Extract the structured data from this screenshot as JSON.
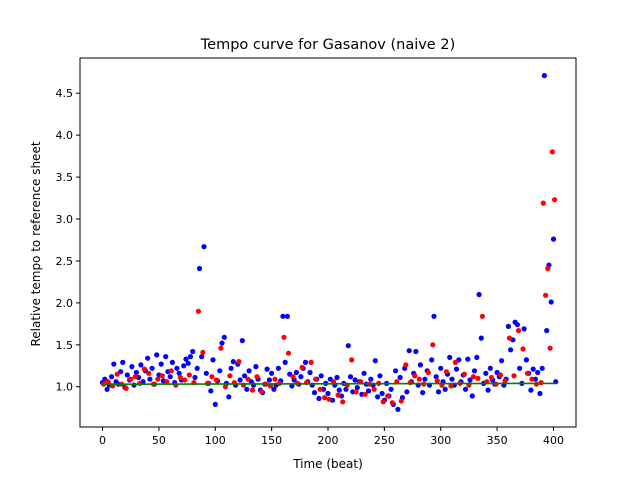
{
  "chart_data": {
    "type": "scatter",
    "title": "Tempo curve for Gasanov (naive 2)",
    "xlabel": "Time (beat)",
    "ylabel": "Relative tempo to reference sheet",
    "xlim": [
      -20,
      420
    ],
    "ylim": [
      0.52,
      4.92
    ],
    "xticks": [
      0,
      50,
      100,
      150,
      200,
      250,
      300,
      350,
      400
    ],
    "yticks": [
      1.0,
      1.5,
      2.0,
      2.5,
      3.0,
      3.5,
      4.0,
      4.5
    ],
    "grid": false,
    "legend": "none",
    "colors": {
      "series_a": "#0000ff",
      "series_b": "#ff0000",
      "reference_line": "#008000"
    },
    "series": [
      {
        "color": "#0000ff",
        "points": [
          [
            0,
            1.05
          ],
          [
            2,
            1.09
          ],
          [
            4,
            0.97
          ],
          [
            6,
            1.02
          ],
          [
            8,
            1.12
          ],
          [
            10,
            1.27
          ],
          [
            12,
            1.06
          ],
          [
            14,
            1.03
          ],
          [
            16,
            1.18
          ],
          [
            18,
            1.29
          ],
          [
            20,
            0.99
          ],
          [
            22,
            1.14
          ],
          [
            24,
            1.08
          ],
          [
            26,
            1.24
          ],
          [
            28,
            1.02
          ],
          [
            30,
            1.17
          ],
          [
            32,
            1.11
          ],
          [
            34,
            1.26
          ],
          [
            36,
            1.06
          ],
          [
            38,
            1.19
          ],
          [
            40,
            1.34
          ],
          [
            42,
            1.09
          ],
          [
            44,
            1.22
          ],
          [
            46,
            1.03
          ],
          [
            48,
            1.38
          ],
          [
            50,
            1.14
          ],
          [
            52,
            1.27
          ],
          [
            54,
            1.07
          ],
          [
            56,
            1.36
          ],
          [
            58,
            1.18
          ],
          [
            60,
            1.12
          ],
          [
            62,
            1.29
          ],
          [
            64,
            1.05
          ],
          [
            66,
            1.22
          ],
          [
            68,
            1.16
          ],
          [
            70,
            1.08
          ],
          [
            72,
            1.25
          ],
          [
            74,
            1.33
          ],
          [
            76,
            1.28
          ],
          [
            78,
            1.36
          ],
          [
            80,
            1.42
          ],
          [
            82,
            1.11
          ],
          [
            84,
            1.22
          ],
          [
            86,
            2.41
          ],
          [
            88,
            1.36
          ],
          [
            90,
            2.67
          ],
          [
            92,
            1.16
          ],
          [
            94,
            1.04
          ],
          [
            96,
            0.95
          ],
          [
            98,
            1.32
          ],
          [
            100,
            0.79
          ],
          [
            102,
            1.07
          ],
          [
            104,
            1.19
          ],
          [
            106,
            1.52
          ],
          [
            108,
            1.59
          ],
          [
            110,
            1.04
          ],
          [
            112,
            0.88
          ],
          [
            114,
            1.22
          ],
          [
            116,
            1.3
          ],
          [
            118,
            1.02
          ],
          [
            120,
            1.27
          ],
          [
            122,
            1.08
          ],
          [
            124,
            1.55
          ],
          [
            126,
            1.13
          ],
          [
            128,
            0.97
          ],
          [
            130,
            1.19
          ],
          [
            132,
            1.06
          ],
          [
            134,
            1.02
          ],
          [
            136,
            1.24
          ],
          [
            138,
            1.09
          ],
          [
            140,
            0.96
          ],
          [
            142,
            0.93
          ],
          [
            144,
            1.03
          ],
          [
            146,
            1.21
          ],
          [
            148,
            1.08
          ],
          [
            150,
            1.16
          ],
          [
            152,
            0.97
          ],
          [
            154,
            1.02
          ],
          [
            156,
            1.22
          ],
          [
            158,
            1.07
          ],
          [
            160,
            1.84
          ],
          [
            162,
            1.29
          ],
          [
            164,
            1.84
          ],
          [
            166,
            1.15
          ],
          [
            168,
            1.01
          ],
          [
            170,
            1.08
          ],
          [
            172,
            1.17
          ],
          [
            174,
            1.03
          ],
          [
            176,
            1.12
          ],
          [
            178,
            1.22
          ],
          [
            180,
            1.29
          ],
          [
            182,
            1.06
          ],
          [
            184,
            1.17
          ],
          [
            186,
            1.02
          ],
          [
            188,
            0.93
          ],
          [
            190,
            1.09
          ],
          [
            192,
            0.86
          ],
          [
            194,
            1.13
          ],
          [
            196,
            0.97
          ],
          [
            198,
            1.04
          ],
          [
            200,
            0.92
          ],
          [
            202,
            1.09
          ],
          [
            204,
            0.84
          ],
          [
            206,
            1.02
          ],
          [
            208,
            1.11
          ],
          [
            210,
            0.96
          ],
          [
            212,
            0.89
          ],
          [
            214,
            1.04
          ],
          [
            216,
            0.97
          ],
          [
            218,
            1.49
          ],
          [
            220,
            1.12
          ],
          [
            222,
            0.94
          ],
          [
            224,
            1.08
          ],
          [
            226,
            0.99
          ],
          [
            228,
            1.06
          ],
          [
            230,
            0.91
          ],
          [
            232,
            1.16
          ],
          [
            234,
            1.03
          ],
          [
            236,
            0.95
          ],
          [
            238,
            1.09
          ],
          [
            240,
            1.02
          ],
          [
            242,
            1.31
          ],
          [
            244,
            0.88
          ],
          [
            246,
            1.13
          ],
          [
            248,
            0.92
          ],
          [
            250,
            0.84
          ],
          [
            252,
            1.04
          ],
          [
            254,
            0.89
          ],
          [
            256,
            0.97
          ],
          [
            258,
            0.79
          ],
          [
            260,
            1.19
          ],
          [
            262,
            0.73
          ],
          [
            264,
            1.11
          ],
          [
            266,
            0.87
          ],
          [
            268,
            1.22
          ],
          [
            270,
            0.94
          ],
          [
            272,
            1.43
          ],
          [
            274,
            1.06
          ],
          [
            276,
            1.16
          ],
          [
            278,
            1.42
          ],
          [
            280,
            1.02
          ],
          [
            282,
            1.26
          ],
          [
            284,
            0.93
          ],
          [
            286,
            1.09
          ],
          [
            288,
            1.19
          ],
          [
            290,
            1.02
          ],
          [
            292,
            1.32
          ],
          [
            294,
            1.84
          ],
          [
            296,
            1.12
          ],
          [
            298,
            0.94
          ],
          [
            300,
            1.22
          ],
          [
            302,
            1.06
          ],
          [
            304,
            0.97
          ],
          [
            306,
            1.15
          ],
          [
            308,
            1.35
          ],
          [
            310,
            1.09
          ],
          [
            312,
            1.02
          ],
          [
            314,
            1.21
          ],
          [
            316,
            1.32
          ],
          [
            318,
            1.06
          ],
          [
            320,
            1.14
          ],
          [
            322,
            0.97
          ],
          [
            324,
            1.33
          ],
          [
            326,
            1.08
          ],
          [
            328,
            0.89
          ],
          [
            330,
            1.19
          ],
          [
            332,
            1.35
          ],
          [
            334,
            2.1
          ],
          [
            336,
            1.58
          ],
          [
            338,
            1.04
          ],
          [
            340,
            1.16
          ],
          [
            342,
            0.96
          ],
          [
            344,
            1.22
          ],
          [
            346,
            1.08
          ],
          [
            348,
            1.03
          ],
          [
            350,
            1.17
          ],
          [
            352,
            1.12
          ],
          [
            354,
            1.31
          ],
          [
            356,
            1.02
          ],
          [
            358,
            1.09
          ],
          [
            360,
            1.72
          ],
          [
            362,
            1.44
          ],
          [
            364,
            1.56
          ],
          [
            366,
            1.77
          ],
          [
            368,
            1.74
          ],
          [
            370,
            1.22
          ],
          [
            372,
            1.04
          ],
          [
            374,
            1.69
          ],
          [
            376,
            1.32
          ],
          [
            378,
            1.16
          ],
          [
            380,
            0.96
          ],
          [
            382,
            1.21
          ],
          [
            384,
            1.09
          ],
          [
            386,
            1.17
          ],
          [
            388,
            0.92
          ],
          [
            390,
            1.22
          ],
          [
            392,
            4.71
          ],
          [
            394,
            1.67
          ],
          [
            396,
            2.45
          ],
          [
            398,
            2.01
          ],
          [
            400,
            2.76
          ],
          [
            402,
            1.06
          ]
        ]
      },
      {
        "color": "#ff0000",
        "points": [
          [
            1,
            1.03
          ],
          [
            5,
            1.06
          ],
          [
            9,
            1.01
          ],
          [
            13,
            1.15
          ],
          [
            17,
            1.03
          ],
          [
            21,
            0.98
          ],
          [
            25,
            1.09
          ],
          [
            29,
            1.12
          ],
          [
            33,
            1.04
          ],
          [
            37,
            1.21
          ],
          [
            41,
            1.16
          ],
          [
            45,
            1.03
          ],
          [
            49,
            1.09
          ],
          [
            53,
            1.13
          ],
          [
            57,
            1.06
          ],
          [
            61,
            1.19
          ],
          [
            65,
            1.02
          ],
          [
            69,
            1.11
          ],
          [
            73,
            1.08
          ],
          [
            77,
            1.14
          ],
          [
            81,
            1.05
          ],
          [
            85,
            1.9
          ],
          [
            89,
            1.41
          ],
          [
            93,
            1.04
          ],
          [
            97,
            1.12
          ],
          [
            101,
            1.08
          ],
          [
            105,
            1.46
          ],
          [
            109,
            1.0
          ],
          [
            113,
            1.13
          ],
          [
            117,
            1.05
          ],
          [
            121,
            1.3
          ],
          [
            125,
            1.02
          ],
          [
            129,
            1.09
          ],
          [
            133,
            0.96
          ],
          [
            137,
            1.12
          ],
          [
            141,
            0.94
          ],
          [
            145,
            1.03
          ],
          [
            149,
            1.01
          ],
          [
            153,
            1.09
          ],
          [
            157,
            1.04
          ],
          [
            161,
            1.59
          ],
          [
            165,
            1.4
          ],
          [
            169,
            1.12
          ],
          [
            173,
            1.04
          ],
          [
            177,
            1.23
          ],
          [
            181,
            1.05
          ],
          [
            185,
            1.29
          ],
          [
            189,
            1.09
          ],
          [
            193,
            0.97
          ],
          [
            197,
            0.87
          ],
          [
            201,
            0.85
          ],
          [
            205,
            1.06
          ],
          [
            209,
            0.9
          ],
          [
            213,
            0.82
          ],
          [
            217,
            1.02
          ],
          [
            221,
            1.32
          ],
          [
            225,
            0.94
          ],
          [
            229,
            1.06
          ],
          [
            233,
            0.91
          ],
          [
            237,
            1.03
          ],
          [
            241,
            0.97
          ],
          [
            245,
            1.04
          ],
          [
            249,
            0.82
          ],
          [
            253,
            0.89
          ],
          [
            257,
            0.81
          ],
          [
            261,
            1.06
          ],
          [
            265,
            0.83
          ],
          [
            269,
            1.26
          ],
          [
            273,
            1.05
          ],
          [
            277,
            1.13
          ],
          [
            281,
            1.09
          ],
          [
            285,
            1.03
          ],
          [
            289,
            1.17
          ],
          [
            293,
            1.5
          ],
          [
            297,
            1.07
          ],
          [
            301,
            1.02
          ],
          [
            305,
            1.18
          ],
          [
            309,
            1.01
          ],
          [
            313,
            1.29
          ],
          [
            317,
            1.04
          ],
          [
            321,
            1.15
          ],
          [
            325,
            1.02
          ],
          [
            329,
            1.12
          ],
          [
            333,
            1.1
          ],
          [
            337,
            1.84
          ],
          [
            341,
            1.06
          ],
          [
            345,
            1.11
          ],
          [
            349,
            1.03
          ],
          [
            353,
            1.14
          ],
          [
            357,
            1.07
          ],
          [
            361,
            1.58
          ],
          [
            365,
            1.13
          ],
          [
            369,
            1.67
          ],
          [
            373,
            1.45
          ],
          [
            377,
            1.16
          ],
          [
            381,
            1.09
          ],
          [
            385,
            1.03
          ],
          [
            389,
            1.05
          ],
          [
            391,
            3.19
          ],
          [
            393,
            2.09
          ],
          [
            395,
            2.41
          ],
          [
            397,
            1.46
          ],
          [
            399,
            3.8
          ],
          [
            401,
            3.23
          ]
        ]
      }
    ],
    "reference_line": {
      "x": [
        0,
        402
      ],
      "y": [
        1.03,
        1.04
      ]
    }
  }
}
